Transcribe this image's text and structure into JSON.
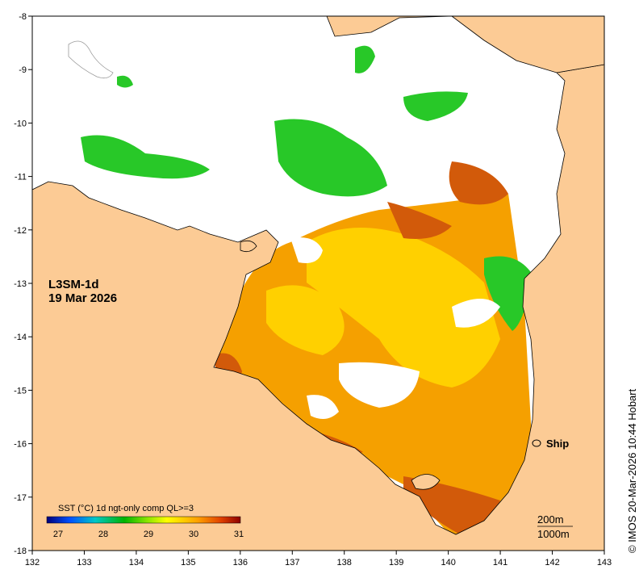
{
  "map": {
    "product": "L3SM-1d",
    "date": "19 Mar 2026",
    "credit": "© IMOS 20-Mar-2026 10:44 Hobart",
    "ship_label": "Ship",
    "contour_labels": [
      "200m",
      "1000m"
    ],
    "x_axis": {
      "min": 132,
      "max": 143,
      "ticks": [
        "132",
        "133",
        "134",
        "135",
        "136",
        "137",
        "138",
        "139",
        "140",
        "141",
        "142",
        "143"
      ]
    },
    "y_axis": {
      "min": -18,
      "max": -8,
      "ticks": [
        "-8",
        "-9",
        "-10",
        "-11",
        "-12",
        "-13",
        "-14",
        "-15",
        "-16",
        "-17",
        "-18"
      ]
    },
    "colorbar": {
      "title": "SST (°C) 1d ngt-only comp QL>=3",
      "ticks": [
        "27",
        "28",
        "29",
        "30",
        "31"
      ],
      "colors": [
        "#00007a",
        "#0050ff",
        "#00c8c8",
        "#00b400",
        "#8ce600",
        "#ffff00",
        "#ffa000",
        "#e04000",
        "#8c0000"
      ]
    },
    "colors": {
      "land": "#fccb95",
      "no_data": "#ffffff",
      "sst_hot": "#d25a0a",
      "sst_warm": "#f5a000",
      "sst_mild": "#ffd000",
      "sst_cool": "#28c828"
    }
  }
}
